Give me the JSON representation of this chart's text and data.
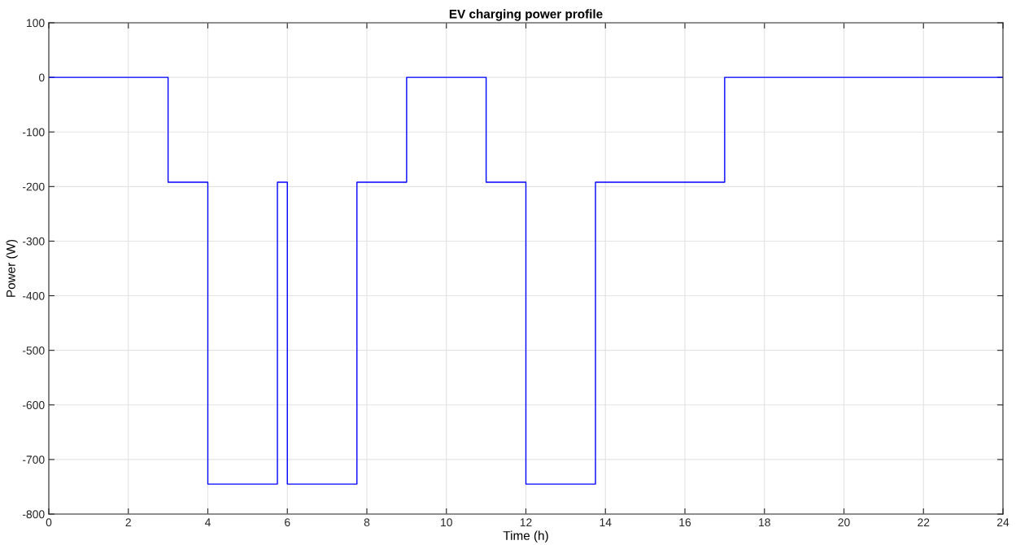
{
  "chart_data": {
    "type": "step",
    "title": "EV charging power profile",
    "xlabel": "Time (h)",
    "ylabel": "Power (W)",
    "x": [
      0,
      3,
      4,
      5.75,
      6,
      7.75,
      9,
      11,
      12,
      13.75,
      17,
      24
    ],
    "series": [
      {
        "color": "#0000ff",
        "values": [
          0,
          -192,
          -745,
          -192,
          -745,
          -192,
          0,
          -192,
          -745,
          -192,
          0,
          0
        ]
      }
    ],
    "xlim": [
      0,
      24
    ],
    "xticks": [
      0,
      2,
      4,
      6,
      8,
      10,
      12,
      14,
      16,
      18,
      20,
      22,
      24
    ],
    "ylim": [
      -800,
      100
    ],
    "yticks": [
      -800,
      -700,
      -600,
      -500,
      -400,
      -300,
      -200,
      -100,
      0,
      100
    ],
    "grid": true,
    "legend": false
  }
}
